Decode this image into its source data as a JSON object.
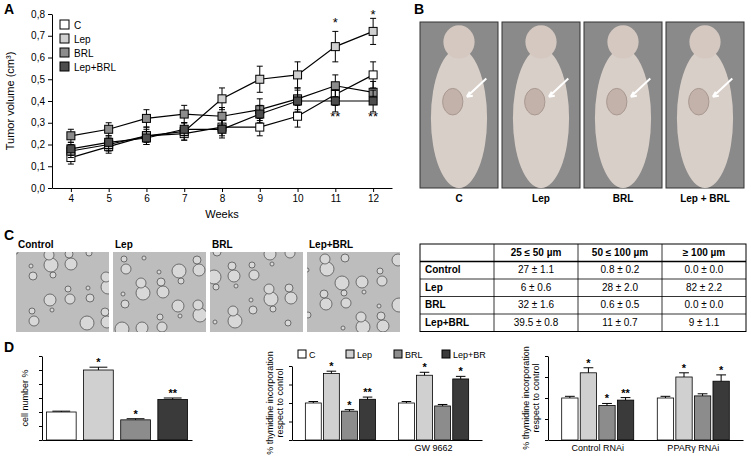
{
  "chart_data": [
    {
      "type": "line",
      "xlabel": "Weeks",
      "ylabel": "Tumor volume (cm³)",
      "x": [
        4,
        5,
        6,
        7,
        8,
        9,
        10,
        11,
        12
      ],
      "xlim": [
        3.5,
        12.5
      ],
      "xticks": [
        4,
        5,
        6,
        7,
        8,
        9,
        10,
        11,
        12
      ],
      "ylim": [
        0,
        0.8
      ],
      "yticks": [
        {
          "value": 0,
          "label": "0,0"
        },
        {
          "value": 0.1,
          "label": "0,1"
        },
        {
          "value": 0.2,
          "label": "0,2"
        },
        {
          "value": 0.3,
          "label": "0,3"
        },
        {
          "value": 0.4,
          "label": "0,4"
        },
        {
          "value": 0.5,
          "label": "0,5"
        },
        {
          "value": 0.6,
          "label": "0,6"
        },
        {
          "value": 0.7,
          "label": "0,7"
        },
        {
          "value": 0.8,
          "label": "0,8"
        }
      ],
      "legend": "upper left",
      "marker": "square",
      "series": [
        {
          "name": "C",
          "color": "#ffffff",
          "values": [
            0.14,
            0.19,
            0.24,
            0.25,
            0.28,
            0.28,
            0.33,
            0.43,
            0.52
          ],
          "errors": [
            0.03,
            0.03,
            0.03,
            0.03,
            0.04,
            0.04,
            0.05,
            0.05,
            0.06
          ]
        },
        {
          "name": "Lep",
          "color": "#d0d0d0",
          "values": [
            0.17,
            0.2,
            0.24,
            0.26,
            0.41,
            0.5,
            0.52,
            0.65,
            0.72
          ],
          "errors": [
            0.03,
            0.03,
            0.04,
            0.04,
            0.05,
            0.06,
            0.06,
            0.07,
            0.06
          ]
        },
        {
          "name": "BRL",
          "color": "#8c8c8c",
          "values": [
            0.24,
            0.27,
            0.32,
            0.34,
            0.33,
            0.36,
            0.41,
            0.47,
            0.44
          ],
          "errors": [
            0.03,
            0.03,
            0.04,
            0.04,
            0.04,
            0.05,
            0.05,
            0.05,
            0.05
          ]
        },
        {
          "name": "Lep+BRL",
          "color": "#4d4d4d",
          "values": [
            0.18,
            0.21,
            0.23,
            0.27,
            0.27,
            0.34,
            0.4,
            0.4,
            0.4
          ],
          "errors": [
            0.03,
            0.03,
            0.03,
            0.03,
            0.04,
            0.04,
            0.05,
            0.05,
            0.05
          ]
        }
      ],
      "annotations": [
        {
          "x": 11,
          "y": 0.76,
          "text": "*"
        },
        {
          "x": 12,
          "y": 0.8,
          "text": "*"
        },
        {
          "x": 11,
          "y": 0.33,
          "text": "**"
        },
        {
          "x": 12,
          "y": 0.33,
          "text": "**"
        }
      ]
    },
    {
      "type": "bar",
      "ylabel": "cell number %",
      "categories": [
        null,
        null,
        null,
        null
      ],
      "values": [
        100,
        250,
        72,
        145
      ],
      "errors": [
        3,
        10,
        4,
        5
      ],
      "colors": [
        "#ffffff",
        "#d0d0d0",
        "#8c8c8c",
        "#3a3a3a"
      ],
      "significance": [
        null,
        "*",
        "*",
        "**"
      ],
      "ylim": [
        0,
        300
      ],
      "yticks": [
        0,
        50,
        100,
        150,
        200,
        250,
        300
      ],
      "tick_labels": false
    },
    {
      "type": "bar",
      "ylabel": "% thymidine incorporation respect to control",
      "categories": [
        null,
        "GW 9662"
      ],
      "legend": "top",
      "series": [
        {
          "name": "C",
          "color": "#ffffff",
          "values": [
            100,
            100
          ],
          "errors": [
            4,
            4
          ],
          "significance": [
            null,
            null
          ]
        },
        {
          "name": "Lep",
          "color": "#d0d0d0",
          "values": [
            180,
            175
          ],
          "errors": [
            6,
            8
          ],
          "significance": [
            "*",
            "*"
          ]
        },
        {
          "name": "BRL",
          "color": "#8c8c8c",
          "values": [
            78,
            92
          ],
          "errors": [
            4,
            4
          ],
          "significance": [
            "*",
            null
          ]
        },
        {
          "name": "Lep+BR",
          "color": "#3a3a3a",
          "values": [
            110,
            165
          ],
          "errors": [
            6,
            7
          ],
          "significance": [
            "**",
            "*"
          ]
        }
      ],
      "ylim": [
        0,
        200
      ],
      "yticks": [
        0,
        50,
        100,
        150,
        200
      ],
      "tick_labels": "x"
    },
    {
      "type": "bar",
      "ylabel": "% thymidine incorporation respect to control",
      "categories": [
        "Control RNAi",
        "PPARγ RNAi"
      ],
      "series": [
        {
          "color": "#ffffff",
          "values": [
            100,
            100
          ],
          "errors": [
            4,
            4
          ],
          "significance": [
            null,
            null
          ]
        },
        {
          "color": "#d0d0d0",
          "values": [
            160,
            150
          ],
          "errors": [
            12,
            10
          ],
          "significance": [
            "*",
            "*"
          ]
        },
        {
          "color": "#8c8c8c",
          "values": [
            82,
            105
          ],
          "errors": [
            5,
            5
          ],
          "significance": [
            "*",
            null
          ]
        },
        {
          "color": "#3a3a3a",
          "values": [
            95,
            140
          ],
          "errors": [
            6,
            15
          ],
          "significance": [
            "**",
            "*"
          ]
        }
      ],
      "ylim": [
        0,
        200
      ],
      "yticks": [
        0,
        50,
        100,
        150,
        200
      ],
      "tick_labels": "x"
    }
  ],
  "panel_labels": [
    "A",
    "B",
    "C",
    "D"
  ],
  "photos": {
    "labels": [
      "C",
      "Lep",
      "BRL",
      "Lep + BRL"
    ]
  },
  "micrographs": {
    "labels": [
      "Control",
      "Lep",
      "BRL",
      "Lep+BRL"
    ]
  },
  "table": {
    "columns": [
      "25 ≤ 50 µm",
      "50 ≤ 100 µm",
      "≥ 100 µm"
    ],
    "rows": [
      {
        "label": "Control",
        "cells": [
          "27 ± 1.1",
          "0.8 ± 0.2",
          "0.0 ± 0.0"
        ]
      },
      {
        "label": "Lep",
        "cells": [
          "6 ± 0.6",
          "28 ± 2.0",
          "82 ± 2.2"
        ]
      },
      {
        "label": "BRL",
        "cells": [
          "32 ± 1.6",
          "0.6 ± 0.5",
          "0.0 ± 0.0"
        ]
      },
      {
        "label": "Lep+BRL",
        "cells": [
          "39.5 ± 0.8",
          "11 ± 0.7",
          "9 ± 1.1"
        ]
      }
    ]
  }
}
